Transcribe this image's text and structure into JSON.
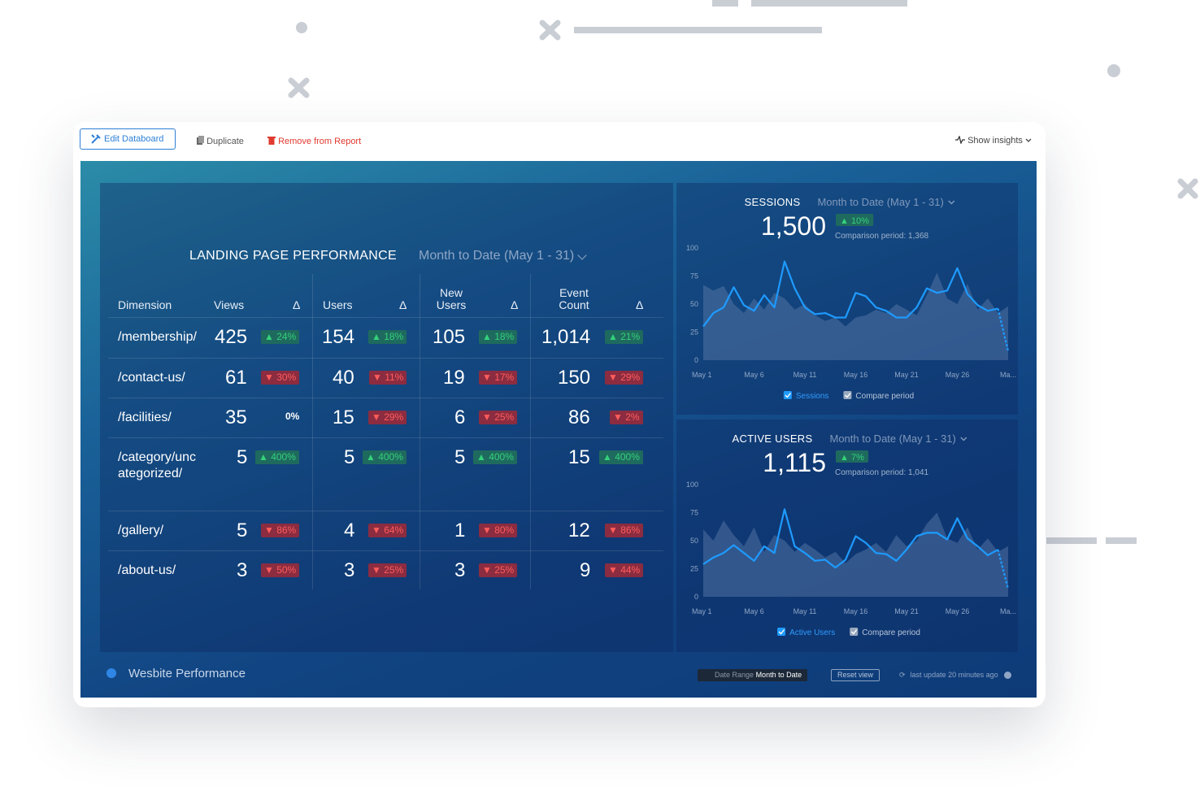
{
  "toolbar": {
    "edit": "Edit Databoard",
    "duplicate": "Duplicate",
    "remove": "Remove from Report",
    "insights": "Show insights"
  },
  "table": {
    "title": "LANDING PAGE PERFORMANCE",
    "period": "Month to Date (May 1 - 31)",
    "headers": [
      "Dimension",
      "Views",
      "Δ",
      "Users",
      "Δ",
      "New Users",
      "Δ",
      "Event Count",
      "Δ"
    ],
    "rows": [
      [
        "/membership/",
        "425",
        "▲ 24%",
        "154",
        "▲ 18%",
        "105",
        "▲ 18%",
        "1,014",
        "▲ 21%"
      ],
      [
        "/contact-us/",
        "61",
        "▼ 30%",
        "40",
        "▼ 11%",
        "19",
        "▼ 17%",
        "150",
        "▼ 29%"
      ],
      [
        "/facilities/",
        "35",
        "0%",
        "15",
        "▼ 29%",
        "6",
        "▼ 25%",
        "86",
        "▼ 2%"
      ],
      [
        "/category/uncategorized/",
        "5",
        "▲ 400%",
        "5",
        "▲ 400%",
        "5",
        "▲ 400%",
        "15",
        "▲ 400%"
      ],
      [
        "/gallery/",
        "5",
        "▼ 86%",
        "4",
        "▼ 64%",
        "1",
        "▼ 80%",
        "12",
        "▼ 86%"
      ],
      [
        "/about-us/",
        "3",
        "▼ 50%",
        "3",
        "▼ 25%",
        "3",
        "▼ 25%",
        "9",
        "▼ 44%"
      ]
    ]
  },
  "chart_data": [
    {
      "type": "line",
      "title": "SESSIONS",
      "subtitle": "Month to Date (May 1 - 31)",
      "total": "1,500",
      "change": "▲ 10%",
      "comparison": "Comparison period: 1,368",
      "categories": [
        "May 1",
        null,
        null,
        null,
        null,
        "May 6",
        null,
        null,
        null,
        null,
        "May 11",
        null,
        null,
        null,
        null,
        "May 16",
        null,
        null,
        null,
        null,
        "May 21",
        null,
        null,
        null,
        null,
        "May 26",
        null,
        null,
        null,
        null,
        "Ma..."
      ],
      "series": [
        {
          "name": "Sessions",
          "color": "#1e9bff",
          "values": [
            30,
            42,
            47,
            65,
            49,
            44,
            58,
            47,
            88,
            64,
            47,
            41,
            42,
            38,
            38,
            60,
            57,
            47,
            44,
            38,
            38,
            47,
            64,
            60,
            62,
            82,
            59,
            49,
            44,
            46,
            8
          ]
        },
        {
          "name": "Compare period",
          "color": "#5f7fae",
          "values": [
            67,
            62,
            66,
            50,
            42,
            55,
            45,
            60,
            55,
            45,
            50,
            40,
            35,
            38,
            30,
            38,
            40,
            45,
            42,
            50,
            45,
            40,
            58,
            78,
            55,
            50,
            68,
            45,
            55,
            42,
            48
          ]
        }
      ],
      "ylim": [
        0,
        100
      ],
      "yticks": [
        0,
        25,
        50,
        75,
        100
      ]
    },
    {
      "type": "line",
      "title": "ACTIVE USERS",
      "subtitle": "Month to Date (May 1 - 31)",
      "total": "1,115",
      "change": "▲ 7%",
      "comparison": "Comparison period: 1,041",
      "categories": [
        "May 1",
        null,
        null,
        null,
        null,
        "May 6",
        null,
        null,
        null,
        null,
        "May 11",
        null,
        null,
        null,
        null,
        "May 16",
        null,
        null,
        null,
        null,
        "May 21",
        null,
        null,
        null,
        null,
        "May 26",
        null,
        null,
        null,
        null,
        "Ma..."
      ],
      "series": [
        {
          "name": "Active Users",
          "color": "#1e9bff",
          "values": [
            29,
            35,
            39,
            46,
            39,
            32,
            45,
            39,
            78,
            45,
            39,
            32,
            33,
            26,
            33,
            54,
            48,
            39,
            38,
            32,
            42,
            54,
            57,
            57,
            51,
            70,
            52,
            45,
            37,
            42,
            7
          ]
        },
        {
          "name": "Compare period",
          "color": "#5f7fae",
          "values": [
            60,
            50,
            68,
            55,
            45,
            62,
            40,
            55,
            50,
            40,
            48,
            42,
            35,
            40,
            30,
            38,
            42,
            48,
            40,
            55,
            45,
            50,
            65,
            75,
            52,
            48,
            62,
            42,
            52,
            40,
            45
          ]
        }
      ],
      "ylim": [
        0,
        100
      ],
      "yticks": [
        0,
        25,
        50,
        75,
        100
      ]
    }
  ],
  "footer": {
    "name": "Wesbite Performance",
    "date_range_label": "Date Range",
    "date_range": "Month to Date",
    "reset": "Reset view",
    "updated": "last update 20 minutes ago"
  }
}
